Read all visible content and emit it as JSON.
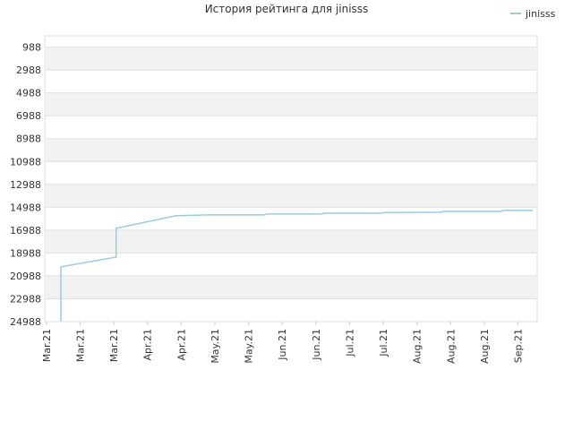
{
  "chart_data": {
    "type": "line",
    "title": "История рейтинга для jinisss",
    "xlim": [
      -0.05,
      14.57
    ],
    "xticks": [
      {
        "value": 0,
        "label": "Mar.21"
      },
      {
        "value": 1,
        "label": "Mar.21"
      },
      {
        "value": 2,
        "label": "Mar.21"
      },
      {
        "value": 3,
        "label": "Apr.21"
      },
      {
        "value": 4,
        "label": "Apr.21"
      },
      {
        "value": 5,
        "label": "May.21"
      },
      {
        "value": 6,
        "label": "May.21"
      },
      {
        "value": 7,
        "label": "Jun.21"
      },
      {
        "value": 8,
        "label": "Jun.21"
      },
      {
        "value": 9,
        "label": "Jul.21"
      },
      {
        "value": 10,
        "label": "Jul.21"
      },
      {
        "value": 11,
        "label": "Aug.21"
      },
      {
        "value": 12,
        "label": "Aug.21"
      },
      {
        "value": 13,
        "label": "Aug.21"
      },
      {
        "value": 14,
        "label": "Sep.21"
      }
    ],
    "ylim": [
      24988,
      0
    ],
    "yticks": [
      988,
      2988,
      4988,
      6988,
      8988,
      10988,
      12988,
      14988,
      16988,
      18988,
      20988,
      22988,
      24988
    ],
    "grid": true,
    "legend": "top-right",
    "series": [
      {
        "name": "jinisss",
        "color": "#9ecae1",
        "x": [
          0.43,
          0.43,
          2.07,
          2.07,
          3.83,
          4.79,
          6.49,
          6.54,
          8.19,
          8.24,
          9.95,
          10.0,
          11.73,
          11.78,
          13.51,
          13.56,
          14.44
        ],
        "values": [
          24988,
          20204,
          19341,
          16831,
          15733,
          15655,
          15655,
          15576,
          15576,
          15498,
          15498,
          15459,
          15419,
          15341,
          15341,
          15263,
          15263
        ]
      }
    ]
  }
}
